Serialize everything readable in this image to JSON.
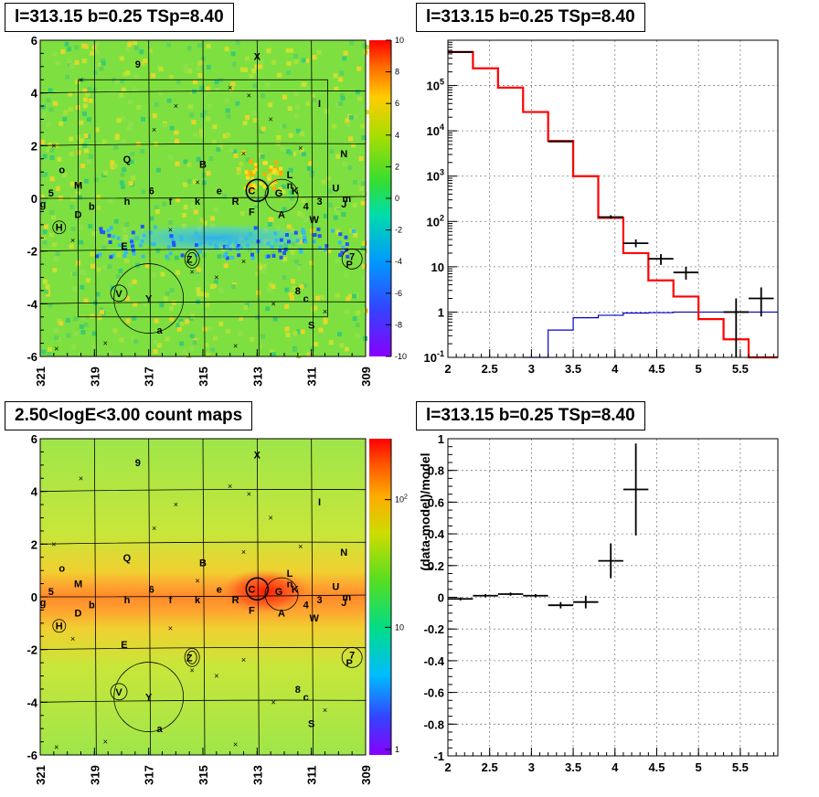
{
  "panels": {
    "top_left_title": "l=313.15 b=0.25 TSp=8.40",
    "top_right_title": "l=313.15 b=0.25 TSp=8.40",
    "bottom_left_title": "2.50<logE<3.00 count maps",
    "bottom_right_title": "l=313.15 b=0.25 TSp=8.40"
  },
  "colors": {
    "data": "#000000",
    "model": "#ff0000",
    "background_model": "#0000cc",
    "frame": "#000000",
    "grid": "#7f7f7f"
  },
  "chart_data": [
    {
      "type": "heatmap",
      "name": "residual significance map",
      "x_ticks": [
        "321",
        "319",
        "317",
        "315",
        "313",
        "311",
        "309"
      ],
      "y_ticks": [
        "6",
        "4",
        "2",
        "0",
        "-2",
        "-4",
        "-6"
      ],
      "xlim": [
        321,
        309
      ],
      "ylim": [
        -6,
        6
      ],
      "colorbar_ticks": [
        "10",
        "8",
        "6",
        "4",
        "2",
        "0",
        "-2",
        "-4",
        "-6",
        "-8",
        "-10"
      ],
      "colorbar_range": [
        -10,
        10
      ],
      "source_labels": [
        "X",
        "9",
        "I",
        "N",
        "Q",
        "B",
        "L",
        "n",
        "U",
        "m",
        "M",
        "o",
        "5",
        "g",
        "b",
        "D",
        "6",
        "h",
        "f",
        "k",
        "e",
        "R",
        "C",
        "F",
        "G",
        "K",
        "4",
        "A",
        "3",
        "W",
        "J",
        "H",
        "E",
        "Z",
        "7",
        "P",
        "V",
        "Y",
        "a",
        "8",
        "c",
        "S"
      ]
    },
    {
      "type": "line",
      "name": "counts spectrum",
      "x_ticks": [
        "2",
        "2.5",
        "3",
        "3.5",
        "4",
        "4.5",
        "5",
        "5.5"
      ],
      "y_ticks": [
        "10^-1",
        "1",
        "10",
        "10^2",
        "10^3",
        "10^4",
        "10^5"
      ],
      "xlim": [
        2,
        5.95
      ],
      "ylim": [
        0.1,
        1000000
      ],
      "yscale": "log",
      "grid": true,
      "model_steps": {
        "edges": [
          2.0,
          2.3,
          2.6,
          2.9,
          3.2,
          3.5,
          3.8,
          4.1,
          4.4,
          4.7,
          5.0,
          5.3,
          5.6,
          5.95
        ],
        "values": [
          550000,
          240000,
          90000,
          26000,
          6000,
          1000,
          120,
          20,
          5,
          2.2,
          0.7,
          0.25,
          0.1
        ]
      },
      "background_steps": {
        "edges": [
          2.9,
          3.2,
          3.5,
          3.8,
          4.1,
          4.4,
          4.7,
          5.0,
          5.3,
          5.6,
          5.95
        ],
        "values": [
          0.1,
          0.4,
          0.75,
          0.85,
          0.95,
          0.97,
          1.0,
          1.0,
          1.0,
          1.0
        ]
      },
      "data_points": [
        {
          "x": 2.15,
          "y": 550000,
          "xerr": 0.15,
          "ylo": 550000,
          "yhi": 550000
        },
        {
          "x": 3.35,
          "y": 5800,
          "xerr": 0.15,
          "ylo": 5700,
          "yhi": 5900
        },
        {
          "x": 3.95,
          "y": 125,
          "xerr": 0.15,
          "ylo": 115,
          "yhi": 137
        },
        {
          "x": 4.25,
          "y": 33,
          "xerr": 0.15,
          "ylo": 27,
          "yhi": 40
        },
        {
          "x": 4.55,
          "y": 15,
          "xerr": 0.15,
          "ylo": 11,
          "yhi": 19
        },
        {
          "x": 4.85,
          "y": 7.5,
          "xerr": 0.15,
          "ylo": 5.2,
          "yhi": 10
        },
        {
          "x": 5.45,
          "y": 1,
          "xerr": 0.15,
          "ylo": 0.1,
          "yhi": 2
        },
        {
          "x": 5.75,
          "y": 2,
          "xerr": 0.15,
          "ylo": 0.8,
          "yhi": 3.5
        }
      ]
    },
    {
      "type": "heatmap",
      "name": "count map",
      "x_ticks": [
        "321",
        "319",
        "317",
        "315",
        "313",
        "311",
        "309"
      ],
      "y_ticks": [
        "6",
        "4",
        "2",
        "0",
        "-2",
        "-4",
        "-6"
      ],
      "xlim": [
        321,
        309
      ],
      "ylim": [
        -6,
        6
      ],
      "colorbar_ticks": [
        "10^2",
        "10",
        "1"
      ],
      "colorbar_scale": "log",
      "source_labels": [
        "X",
        "9",
        "I",
        "N",
        "Q",
        "B",
        "L",
        "n",
        "U",
        "m",
        "M",
        "o",
        "5",
        "g",
        "b",
        "D",
        "6",
        "h",
        "f",
        "k",
        "e",
        "R",
        "C",
        "F",
        "G",
        "K",
        "4",
        "A",
        "3",
        "W",
        "J",
        "H",
        "E",
        "Z",
        "7",
        "P",
        "V",
        "Y",
        "a",
        "8",
        "c",
        "S"
      ]
    },
    {
      "type": "scatter",
      "name": "residuals",
      "ylabel": "(data-model)/model",
      "x_ticks": [
        "2",
        "2.5",
        "3",
        "3.5",
        "4",
        "4.5",
        "5",
        "5.5"
      ],
      "y_ticks": [
        "1",
        "0.8",
        "0.6",
        "0.4",
        "0.2",
        "0",
        "-0.2",
        "-0.4",
        "-0.6",
        "-0.8",
        "-1"
      ],
      "xlim": [
        2,
        5.95
      ],
      "ylim": [
        -1,
        1
      ],
      "grid": true,
      "data_points": [
        {
          "x": 2.15,
          "y": -0.01,
          "xerr": 0.15,
          "yerr": 0.01
        },
        {
          "x": 2.45,
          "y": 0.01,
          "xerr": 0.15,
          "yerr": 0.01
        },
        {
          "x": 2.75,
          "y": 0.02,
          "xerr": 0.15,
          "yerr": 0.01
        },
        {
          "x": 3.05,
          "y": 0.01,
          "xerr": 0.15,
          "yerr": 0.01
        },
        {
          "x": 3.35,
          "y": -0.05,
          "xerr": 0.15,
          "yerr": 0.02
        },
        {
          "x": 3.65,
          "y": -0.03,
          "xerr": 0.15,
          "yerr": 0.04
        },
        {
          "x": 3.95,
          "y": 0.23,
          "xerr": 0.15,
          "yerr": 0.11
        },
        {
          "x": 4.25,
          "y": 0.68,
          "xerr": 0.15,
          "yerr": 0.29
        }
      ]
    }
  ]
}
